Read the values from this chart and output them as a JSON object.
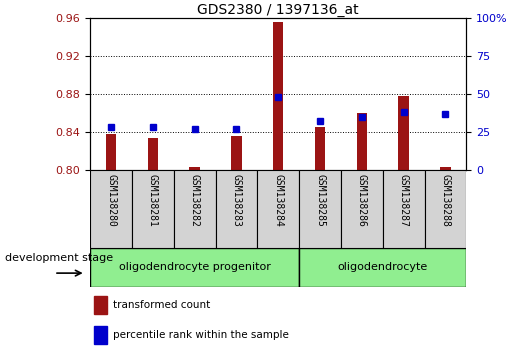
{
  "title": "GDS2380 / 1397136_at",
  "samples": [
    "GSM138280",
    "GSM138281",
    "GSM138282",
    "GSM138283",
    "GSM138284",
    "GSM138285",
    "GSM138286",
    "GSM138287",
    "GSM138288"
  ],
  "red_bars": [
    0.838,
    0.834,
    0.803,
    0.836,
    0.956,
    0.845,
    0.86,
    0.878,
    0.803
  ],
  "blue_dots": [
    28,
    28,
    27,
    27,
    48,
    32,
    35,
    38,
    37
  ],
  "bar_bottom": 0.8,
  "left_ylim": [
    0.8,
    0.96
  ],
  "right_ylim": [
    0,
    100
  ],
  "left_yticks": [
    0.8,
    0.84,
    0.88,
    0.92,
    0.96
  ],
  "right_yticks": [
    0,
    25,
    50,
    75,
    100
  ],
  "right_yticklabels": [
    "0",
    "25",
    "50",
    "75",
    "100%"
  ],
  "bar_color": "#9B1414",
  "dot_color": "#0000CC",
  "group1_label": "oligodendrocyte progenitor",
  "group2_label": "oligodendrocyte",
  "group1_indices": [
    0,
    1,
    2,
    3,
    4
  ],
  "group2_indices": [
    5,
    6,
    7,
    8
  ],
  "dev_stage_label": "development stage",
  "legend_bar_label": "transformed count",
  "legend_dot_label": "percentile rank within the sample",
  "group_bg_color": "#90EE90",
  "sample_box_color": "#D3D3D3",
  "title_fontsize": 10,
  "tick_fontsize": 8,
  "sample_fontsize": 7,
  "group_fontsize": 8,
  "legend_fontsize": 7.5,
  "dev_fontsize": 8
}
